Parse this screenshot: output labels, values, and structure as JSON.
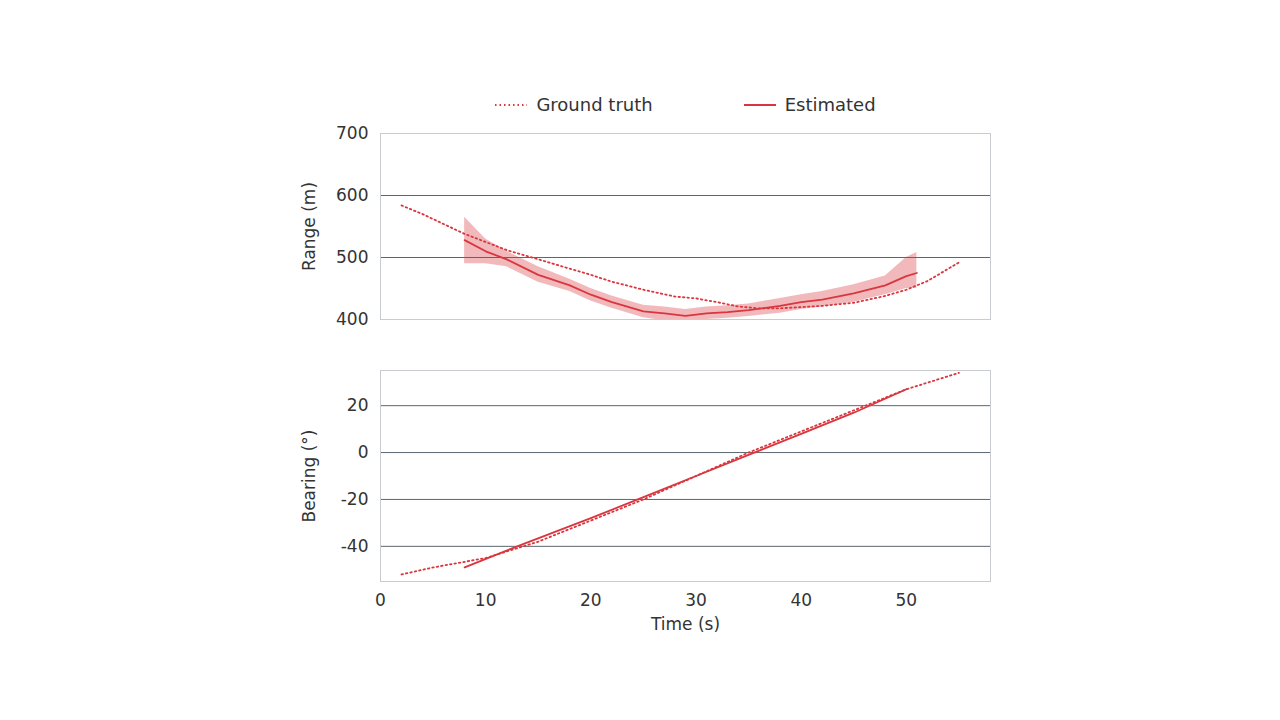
{
  "chart_data": {
    "type": "line",
    "grid": true,
    "legend": "top",
    "xlabel": "Time (s)",
    "xlim": [
      0,
      58
    ],
    "xticks": [
      0,
      10,
      20,
      30,
      40,
      50
    ],
    "series": [
      {
        "name": "Ground truth",
        "color": "#d9363e",
        "line_style": "dotted"
      },
      {
        "name": "Estimated",
        "color": "#d9363e",
        "line_style": "solid"
      }
    ],
    "panels": [
      {
        "ylabel": "Range (m)",
        "ylim": [
          400,
          700
        ],
        "yticks": [
          400,
          500,
          600,
          700
        ],
        "tick_labels": "y",
        "series": [
          {
            "name": "Ground truth",
            "x": [
              2,
              4,
              6,
              8,
              10,
              12,
              15,
              18,
              20,
              22,
              25,
              28,
              30,
              32,
              34,
              36,
              38,
              40,
              42,
              45,
              48,
              50,
              52,
              55
            ],
            "values": [
              584,
              570,
              554,
              538,
              525,
              512,
              497,
              482,
              472,
              461,
              448,
              437,
              434,
              428,
              421,
              418,
              418,
              420,
              422,
              427,
              438,
              448,
              462,
              492
            ]
          },
          {
            "name": "Estimated",
            "x": [
              8,
              10,
              12,
              15,
              18,
              20,
              22,
              25,
              27,
              29,
              31,
              33,
              35,
              38,
              40,
              42,
              45,
              48,
              50,
              51
            ],
            "values": [
              528,
              510,
              497,
              472,
              455,
              440,
              428,
              413,
              410,
              406,
              410,
              412,
              415,
              422,
              428,
              432,
              442,
              455,
              470,
              475
            ],
            "lower": [
              490,
              490,
              485,
              460,
              445,
              430,
              418,
              403,
              398,
              396,
              400,
              402,
              405,
              410,
              416,
              420,
              428,
              440,
              450,
              450
            ],
            "upper": [
              565,
              530,
              510,
              485,
              465,
              450,
              438,
              423,
              420,
              416,
              420,
              422,
              425,
              434,
              440,
              445,
              456,
              470,
              500,
              508
            ]
          }
        ]
      },
      {
        "ylabel": "Bearing (°)",
        "ylim": [
          -55,
          35
        ],
        "yticks": [
          -40,
          -20,
          0,
          20
        ],
        "series": [
          {
            "name": "Ground truth",
            "x": [
              2,
              5,
              10,
              15,
              20,
              25,
              30,
              35,
              40,
              45,
              50,
              55
            ],
            "values": [
              -52,
              -49,
              -45,
              -38,
              -29,
              -20,
              -10,
              0,
              9,
              18,
              27,
              34
            ]
          },
          {
            "name": "Estimated",
            "x": [
              8,
              13,
              20,
              25,
              30,
              35,
              40,
              45,
              50
            ],
            "values": [
              -49,
              -40,
              -28,
              -19,
              -10,
              -1,
              8,
              17,
              27
            ]
          }
        ]
      }
    ]
  }
}
